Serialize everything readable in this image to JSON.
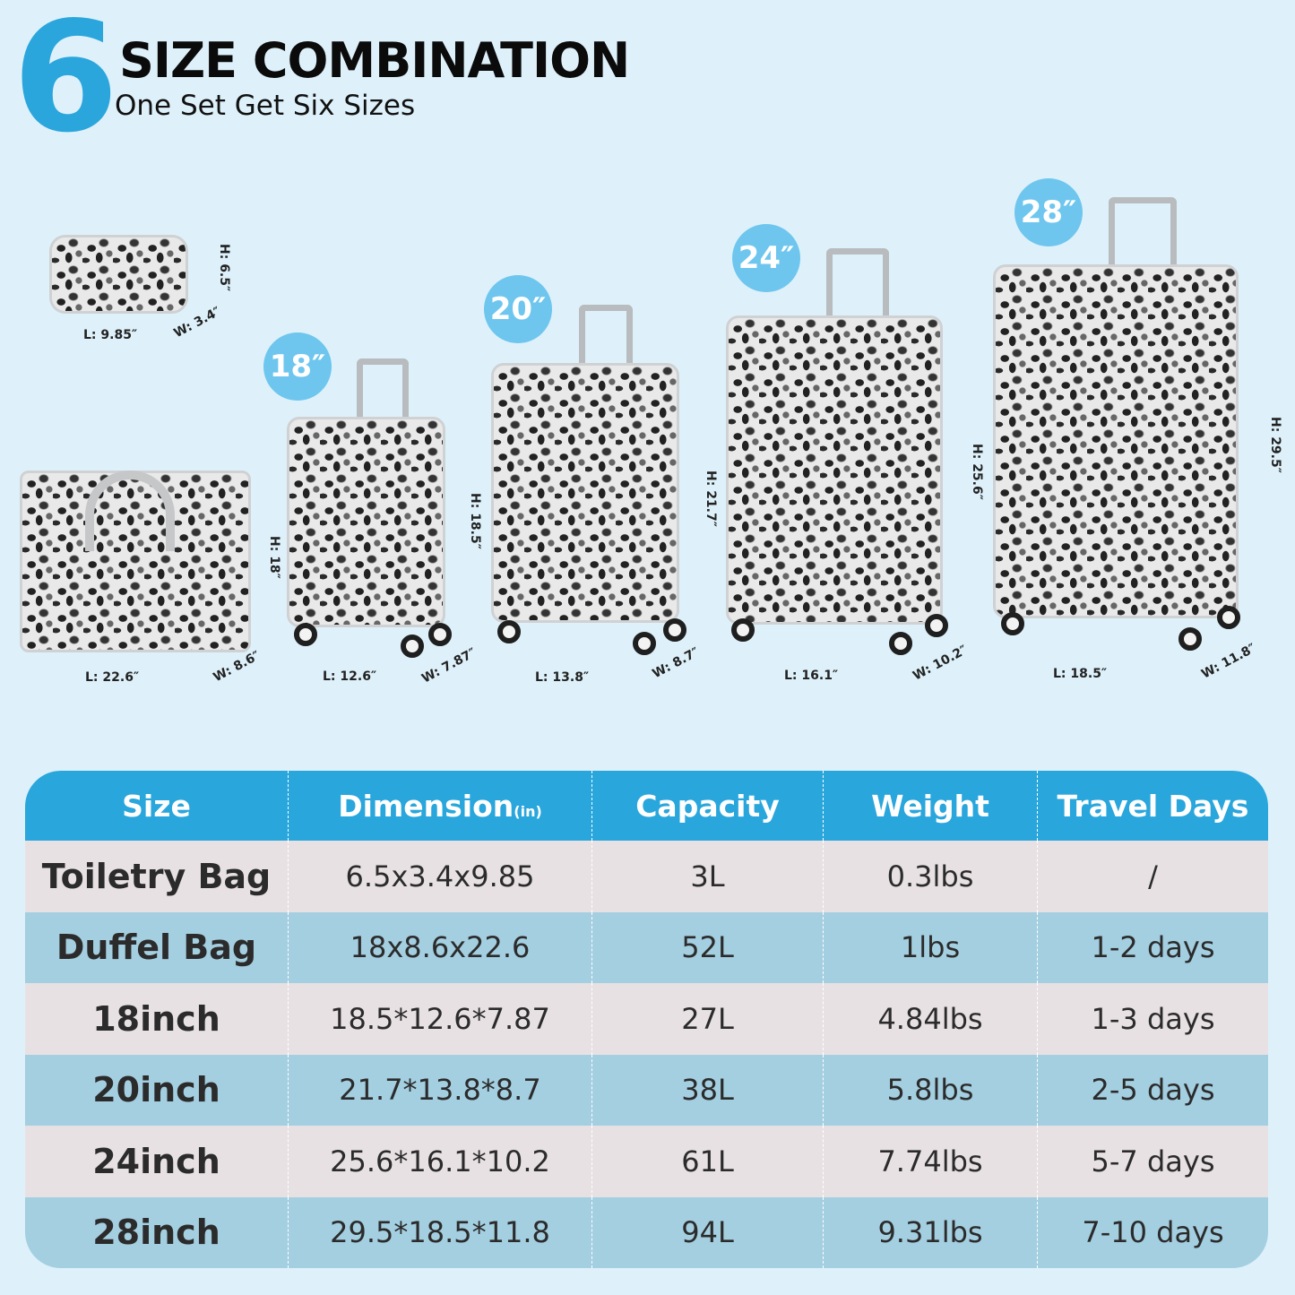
{
  "header": {
    "number": "6",
    "title": "SIZE COMBINATION",
    "subtitle": "One Set Get Six Sizes"
  },
  "products": {
    "toiletry": {
      "h": "H: 6.5″",
      "l": "L: 9.85″",
      "w": "W: 3.4″"
    },
    "duffel": {
      "h": "H: 18″",
      "l": "L: 22.6″",
      "w": "W: 8.6″"
    },
    "s18": {
      "badge": "18″",
      "h": "H: 18.5″",
      "l": "L: 12.6″",
      "w": "W: 7.87″"
    },
    "s20": {
      "badge": "20″",
      "h": "H: 21.7″",
      "l": "L: 13.8″",
      "w": "W: 8.7″"
    },
    "s24": {
      "badge": "24″",
      "h": "H: 25.6″",
      "l": "L: 16.1″",
      "w": "W: 10.2″"
    },
    "s28": {
      "badge": "28″",
      "h": "H: 29.5″",
      "l": "L: 18.5″",
      "w": "W: 11.8″"
    }
  },
  "colors": {
    "accent": "#29a6dc",
    "badge": "#6ec6ee",
    "row_pink": "#e8e1e4",
    "row_blue": "#a4cfe1",
    "background": "#def1fa"
  },
  "table": {
    "headers": [
      "Size",
      "Dimension",
      "Capacity",
      "Weight",
      "Travel Days"
    ],
    "dimension_unit": "(in)",
    "rows": [
      [
        "Toiletry Bag",
        "6.5x3.4x9.85",
        "3L",
        "0.3lbs",
        "/"
      ],
      [
        "Duffel Bag",
        "18x8.6x22.6",
        "52L",
        "1lbs",
        "1-2 days"
      ],
      [
        "18inch",
        "18.5*12.6*7.87",
        "27L",
        "4.84lbs",
        "1-3 days"
      ],
      [
        "20inch",
        "21.7*13.8*8.7",
        "38L",
        "5.8lbs",
        "2-5 days"
      ],
      [
        "24inch",
        "25.6*16.1*10.2",
        "61L",
        "7.74lbs",
        "5-7 days"
      ],
      [
        "28inch",
        "29.5*18.5*11.8",
        "94L",
        "9.31lbs",
        "7-10 days"
      ]
    ]
  }
}
